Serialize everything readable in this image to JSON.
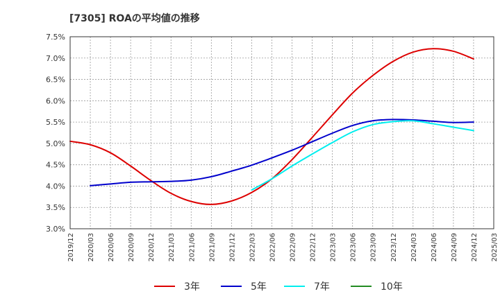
{
  "chart_data": {
    "type": "line",
    "title": "[7305]  ROAの平均値の推移",
    "xlabel": "",
    "ylabel": "",
    "ylim": [
      3.0,
      7.5
    ],
    "y_ticks": [
      3.0,
      3.5,
      4.0,
      4.5,
      5.0,
      5.5,
      6.0,
      6.5,
      7.0,
      7.5
    ],
    "y_tick_labels": [
      "3.0%",
      "3.5%",
      "4.0%",
      "4.5%",
      "5.0%",
      "5.5%",
      "6.0%",
      "6.5%",
      "7.0%",
      "7.5%"
    ],
    "x_tick_labels": [
      "2019/12",
      "2020/03",
      "2020/06",
      "2020/09",
      "2020/12",
      "2021/03",
      "2021/06",
      "2021/09",
      "2021/12",
      "2022/03",
      "2022/06",
      "2022/09",
      "2022/12",
      "2023/03",
      "2023/06",
      "2023/09",
      "2023/12",
      "2024/03",
      "2024/06",
      "2024/09",
      "2024/12",
      "2025/03"
    ],
    "grid": true,
    "legend_position": "bottom",
    "series": [
      {
        "name": "3年",
        "color": "#dd0000",
        "points": [
          [
            "2019/12",
            5.05
          ],
          [
            "2020/03",
            4.97
          ],
          [
            "2020/06",
            4.78
          ],
          [
            "2020/09",
            4.47
          ],
          [
            "2020/12",
            4.13
          ],
          [
            "2021/03",
            3.83
          ],
          [
            "2021/06",
            3.64
          ],
          [
            "2021/09",
            3.57
          ],
          [
            "2021/12",
            3.65
          ],
          [
            "2022/03",
            3.85
          ],
          [
            "2022/06",
            4.17
          ],
          [
            "2022/09",
            4.62
          ],
          [
            "2022/12",
            5.14
          ],
          [
            "2023/03",
            5.67
          ],
          [
            "2023/06",
            6.18
          ],
          [
            "2023/09",
            6.59
          ],
          [
            "2023/12",
            6.92
          ],
          [
            "2024/03",
            7.14
          ],
          [
            "2024/06",
            7.22
          ],
          [
            "2024/09",
            7.16
          ],
          [
            "2024/12",
            6.98
          ]
        ]
      },
      {
        "name": "5年",
        "color": "#0000cc",
        "points": [
          [
            "2020/03",
            4.01
          ],
          [
            "2020/06",
            4.05
          ],
          [
            "2020/09",
            4.09
          ],
          [
            "2020/12",
            4.1
          ],
          [
            "2021/03",
            4.11
          ],
          [
            "2021/06",
            4.14
          ],
          [
            "2021/09",
            4.22
          ],
          [
            "2021/12",
            4.35
          ],
          [
            "2022/03",
            4.49
          ],
          [
            "2022/06",
            4.66
          ],
          [
            "2022/09",
            4.84
          ],
          [
            "2022/12",
            5.04
          ],
          [
            "2023/03",
            5.24
          ],
          [
            "2023/06",
            5.42
          ],
          [
            "2023/09",
            5.53
          ],
          [
            "2023/12",
            5.56
          ],
          [
            "2024/03",
            5.55
          ],
          [
            "2024/06",
            5.52
          ],
          [
            "2024/09",
            5.49
          ],
          [
            "2024/12",
            5.5
          ]
        ]
      },
      {
        "name": "7年",
        "color": "#00eeee",
        "points": [
          [
            "2022/03",
            3.91
          ],
          [
            "2022/06",
            4.17
          ],
          [
            "2022/09",
            4.47
          ],
          [
            "2022/12",
            4.75
          ],
          [
            "2023/03",
            5.02
          ],
          [
            "2023/06",
            5.27
          ],
          [
            "2023/09",
            5.44
          ],
          [
            "2023/12",
            5.51
          ],
          [
            "2024/03",
            5.53
          ],
          [
            "2024/06",
            5.46
          ],
          [
            "2024/09",
            5.38
          ],
          [
            "2024/12",
            5.3
          ]
        ]
      },
      {
        "name": "10年",
        "color": "#228b22",
        "points": []
      }
    ]
  }
}
